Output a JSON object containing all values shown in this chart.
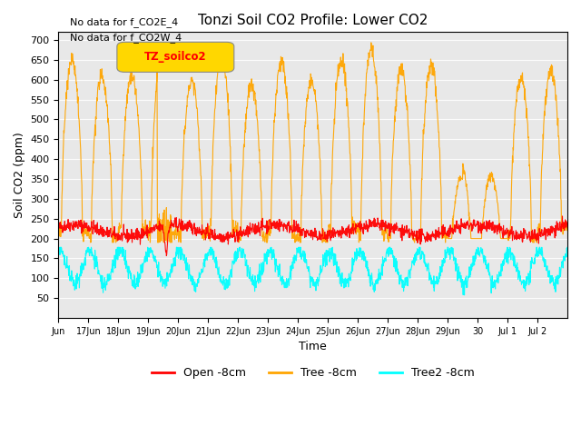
{
  "title": "Tonzi Soil CO2 Profile: Lower CO2",
  "xlabel": "Time",
  "ylabel": "Soil CO2 (ppm)",
  "ylim": [
    0,
    720
  ],
  "yticks": [
    50,
    100,
    150,
    200,
    250,
    300,
    350,
    400,
    450,
    500,
    550,
    600,
    650,
    700
  ],
  "annotations": [
    "No data for f_CO2E_4",
    "No data for f_CO2W_4"
  ],
  "legend_box_label": "TZ_soilco2",
  "legend_box_color": "#FFD700",
  "legend_items": [
    {
      "label": "Open -8cm",
      "color": "#FF0000"
    },
    {
      "label": "Tree -8cm",
      "color": "#FFA500"
    },
    {
      "label": "Tree2 -8cm",
      "color": "#00FFFF"
    }
  ],
  "x_tick_labels": [
    "Jun",
    "17Jun",
    "18Jun",
    "19Jun",
    "20Jun",
    "21Jun",
    "22Jun",
    "23Jun",
    "24Jun",
    "25Jun",
    "26Jun",
    "27Jun",
    "28Jun",
    "29Jun",
    "30",
    "Jul 1",
    "Jul 2"
  ],
  "background_color": "#ffffff",
  "plot_bg_color": "#e8e8e8"
}
